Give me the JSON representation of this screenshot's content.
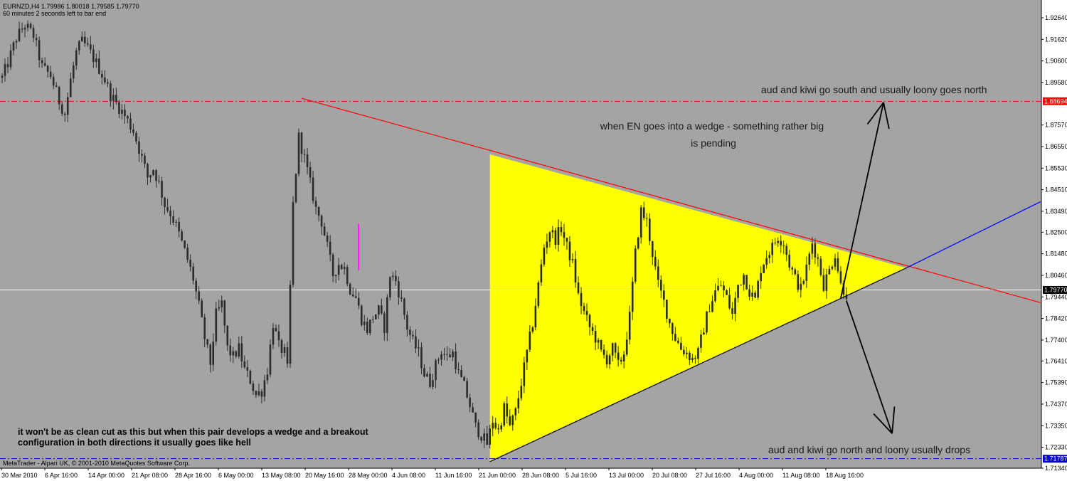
{
  "header": {
    "symbol_line": "EURNZD,H4  1.79986 1.80018 1.79585 1.79770",
    "countdown": "60 minutes 2 seconds left to bar end"
  },
  "footer": {
    "copyright": "MetaTrader - Alpari UK, © 2001-2010 MetaQuotes Software Corp."
  },
  "annotations": {
    "south": "aud and kiwi go south and usually loony goes north",
    "wedge_line1": "when EN goes into a wedge - something rather big",
    "wedge_line2": "is pending",
    "north": "aud and kiwi go north and loony usually drops",
    "comment_line1": "it won't be as clean cut as this but when this pair develops a wedge and a breakout",
    "comment_line2": "configuration in both directions it usually goes like hell"
  },
  "colors": {
    "background": "#a4a4a4",
    "axis_panel": "#ffffff",
    "candles": "#2b2b2b",
    "wedge_fill": "#ffff00",
    "resistance": "#ff0000",
    "support": "#000000",
    "extension": "#0000ff",
    "resistance_level": "#ff0000",
    "support_level": "#0000cc",
    "bid_line": "#ffffff",
    "price_tag_red": "#ff0000",
    "price_tag_blue": "#0000cc",
    "price_tag_black": "#000000",
    "highlight_bar": "#ff00ff"
  },
  "chart_data": {
    "type": "candlestick",
    "symbol": "EURNZD",
    "timeframe": "H4",
    "ylim": [
      1.7134,
      1.9264
    ],
    "yticks": [
      "1.92640",
      "1.91620",
      "1.90600",
      "1.89580",
      "1.87570",
      "1.86550",
      "1.85530",
      "1.84510",
      "1.83490",
      "1.82500",
      "1.81480",
      "1.80460",
      "1.79440",
      "1.78420",
      "1.77400",
      "1.76410",
      "1.75390",
      "1.74370",
      "1.73350",
      "1.72330",
      "1.71340"
    ],
    "xticks": [
      "30 Mar 2010",
      "6 Apr 16:00",
      "14 Apr 00:00",
      "21 Apr 08:00",
      "28 Apr 16:00",
      "6 May 00:00",
      "13 May 08:00",
      "20 May 16:00",
      "28 May 00:00",
      "4 Jun 08:00",
      "11 Jun 16:00",
      "21 Jun 00:00",
      "28 Jun 08:00",
      "5 Jul 16:00",
      "13 Jul 00:00",
      "20 Jul 08:00",
      "27 Jul 16:00",
      "4 Aug 00:00",
      "11 Aug 08:00",
      "18 Aug 16:00"
    ],
    "price_path": [
      [
        0,
        1.898
      ],
      [
        2,
        1.905
      ],
      [
        5,
        1.917
      ],
      [
        8,
        1.923
      ],
      [
        11,
        1.918
      ],
      [
        14,
        1.903
      ],
      [
        17,
        1.899
      ],
      [
        20,
        1.887
      ],
      [
        22,
        1.881
      ],
      [
        24,
        1.897
      ],
      [
        26,
        1.91
      ],
      [
        28,
        1.915
      ],
      [
        30,
        1.912
      ],
      [
        33,
        1.905
      ],
      [
        36,
        1.897
      ],
      [
        38,
        1.89
      ],
      [
        40,
        1.886
      ],
      [
        43,
        1.88
      ],
      [
        46,
        1.873
      ],
      [
        49,
        1.86
      ],
      [
        51,
        1.851
      ],
      [
        53,
        1.855
      ],
      [
        55,
        1.848
      ],
      [
        57,
        1.838
      ],
      [
        59,
        1.834
      ],
      [
        61,
        1.828
      ],
      [
        63,
        1.82
      ],
      [
        65,
        1.812
      ],
      [
        67,
        1.803
      ],
      [
        69,
        1.79
      ],
      [
        71,
        1.775
      ],
      [
        73,
        1.763
      ],
      [
        75,
        1.786
      ],
      [
        77,
        1.791
      ],
      [
        79,
        1.77
      ],
      [
        81,
        1.766
      ],
      [
        83,
        1.77
      ],
      [
        85,
        1.76
      ],
      [
        87,
        1.755
      ],
      [
        89,
        1.748
      ],
      [
        91,
        1.75
      ],
      [
        93,
        1.76
      ],
      [
        95,
        1.782
      ],
      [
        97,
        1.771
      ],
      [
        99,
        1.768
      ],
      [
        100,
        1.76
      ],
      [
        102,
        1.838
      ],
      [
        104,
        1.87
      ],
      [
        106,
        1.86
      ],
      [
        108,
        1.848
      ],
      [
        110,
        1.836
      ],
      [
        112,
        1.83
      ],
      [
        114,
        1.818
      ],
      [
        116,
        1.805
      ],
      [
        118,
        1.81
      ],
      [
        120,
        1.808
      ],
      [
        122,
        1.798
      ],
      [
        124,
        1.794
      ],
      [
        126,
        1.784
      ],
      [
        128,
        1.779
      ],
      [
        130,
        1.785
      ],
      [
        132,
        1.788
      ],
      [
        134,
        1.78
      ],
      [
        136,
        1.805
      ],
      [
        138,
        1.802
      ],
      [
        140,
        1.792
      ],
      [
        142,
        1.78
      ],
      [
        144,
        1.773
      ],
      [
        146,
        1.768
      ],
      [
        148,
        1.758
      ],
      [
        150,
        1.754
      ],
      [
        152,
        1.762
      ],
      [
        154,
        1.769
      ],
      [
        156,
        1.766
      ],
      [
        158,
        1.768
      ],
      [
        160,
        1.758
      ],
      [
        162,
        1.752
      ],
      [
        164,
        1.743
      ],
      [
        166,
        1.733
      ],
      [
        168,
        1.729
      ],
      [
        170,
        1.725
      ],
      [
        172,
        1.736
      ],
      [
        174,
        1.731
      ],
      [
        176,
        1.742
      ],
      [
        178,
        1.733
      ],
      [
        180,
        1.74
      ],
      [
        182,
        1.754
      ],
      [
        184,
        1.768
      ],
      [
        186,
        1.782
      ],
      [
        188,
        1.8
      ],
      [
        190,
        1.818
      ],
      [
        192,
        1.826
      ],
      [
        194,
        1.822
      ],
      [
        196,
        1.827
      ],
      [
        198,
        1.818
      ],
      [
        200,
        1.81
      ],
      [
        202,
        1.795
      ],
      [
        204,
        1.787
      ],
      [
        206,
        1.78
      ],
      [
        208,
        1.775
      ],
      [
        210,
        1.768
      ],
      [
        212,
        1.765
      ],
      [
        214,
        1.77
      ],
      [
        216,
        1.762
      ],
      [
        218,
        1.768
      ],
      [
        220,
        1.785
      ],
      [
        222,
        1.815
      ],
      [
        224,
        1.835
      ],
      [
        226,
        1.83
      ],
      [
        228,
        1.815
      ],
      [
        230,
        1.8
      ],
      [
        232,
        1.792
      ],
      [
        234,
        1.782
      ],
      [
        236,
        1.775
      ],
      [
        238,
        1.77
      ],
      [
        240,
        1.768
      ],
      [
        242,
        1.765
      ],
      [
        244,
        1.768
      ],
      [
        246,
        1.78
      ],
      [
        248,
        1.79
      ],
      [
        250,
        1.797
      ],
      [
        252,
        1.8
      ],
      [
        254,
        1.794
      ],
      [
        256,
        1.786
      ],
      [
        258,
        1.8
      ],
      [
        260,
        1.805
      ],
      [
        262,
        1.797
      ],
      [
        264,
        1.793
      ],
      [
        266,
        1.808
      ],
      [
        268,
        1.814
      ],
      [
        270,
        1.818
      ],
      [
        272,
        1.823
      ],
      [
        274,
        1.82
      ],
      [
        276,
        1.81
      ],
      [
        278,
        1.803
      ],
      [
        280,
        1.798
      ],
      [
        282,
        1.808
      ],
      [
        284,
        1.82
      ],
      [
        286,
        1.812
      ],
      [
        288,
        1.8
      ],
      [
        290,
        1.807
      ],
      [
        292,
        1.815
      ],
      [
        294,
        1.8
      ],
      [
        296,
        1.796
      ]
    ],
    "wedge": {
      "top_left": [
        171,
        1.8618
      ],
      "apex": [
        317,
        1.8081
      ],
      "bottom_left": [
        171,
        1.7165
      ]
    },
    "resistance_line": {
      "start": [
        105,
        1.8883
      ],
      "end": [
        364,
        1.7917
      ]
    },
    "extension_line": {
      "start": [
        317,
        1.8081
      ],
      "end": [
        364,
        1.8394
      ]
    },
    "levels": {
      "resistance_level": 1.8869,
      "support_level": 1.7179,
      "bid": 1.7977
    },
    "price_tags": [
      "1.88694",
      "1.79770",
      "1.71787"
    ],
    "arrows": [
      {
        "start": [
          294,
          1.7938
        ],
        "tip": [
          309,
          1.8864
        ]
      },
      {
        "start": [
          296,
          1.7925
        ],
        "tip": [
          312,
          1.7298
        ]
      }
    ],
    "highlight_bar": {
      "x": 125,
      "low": 1.807,
      "high": 1.829
    }
  }
}
